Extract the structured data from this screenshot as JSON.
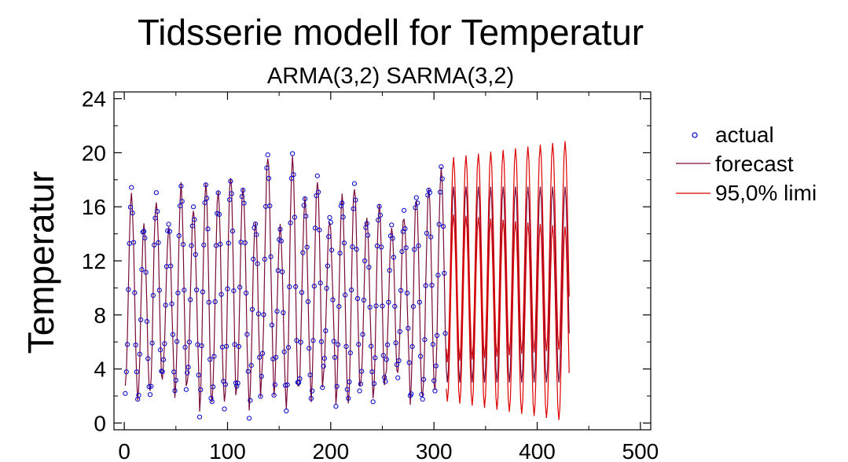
{
  "chart_data": {
    "type": "line",
    "title": "Tidsserie modell for Temperatur",
    "subtitle": "ARMA(3,2) SARMA(3,2)",
    "xlabel": "",
    "ylabel": "Temperatur",
    "xlim": [
      -10,
      510
    ],
    "ylim": [
      -0.5,
      24.5
    ],
    "xticks": [
      0,
      100,
      200,
      300,
      400,
      500
    ],
    "yticks": [
      0,
      4,
      8,
      12,
      16,
      20,
      24
    ],
    "grid": false,
    "legend_position": "right",
    "legend": [
      "actual",
      "forecast",
      "95,0% limi"
    ],
    "colors": {
      "actual": "#0000cc",
      "forecast": "#7a0a3a",
      "limits": "#dd0000",
      "axis": "#000000"
    },
    "series": [
      {
        "name": "actual",
        "kind": "scatter",
        "x_range": [
          1,
          311
        ],
        "period": 12,
        "summer_peak_range": [
          14.0,
          20.1
        ],
        "winter_trough_range": [
          0.8,
          3.8
        ]
      },
      {
        "name": "forecast",
        "kind": "line",
        "x_range": [
          1,
          431
        ],
        "period": 12,
        "peak_approx": 17.5,
        "trough_approx": 3.0
      },
      {
        "name": "95,0% limi",
        "kind": "line",
        "x_range": [
          312,
          431
        ],
        "upper_peak_range": [
          19.6,
          20.9
        ],
        "lower_trough_range": [
          0.1,
          1.6
        ]
      }
    ]
  }
}
